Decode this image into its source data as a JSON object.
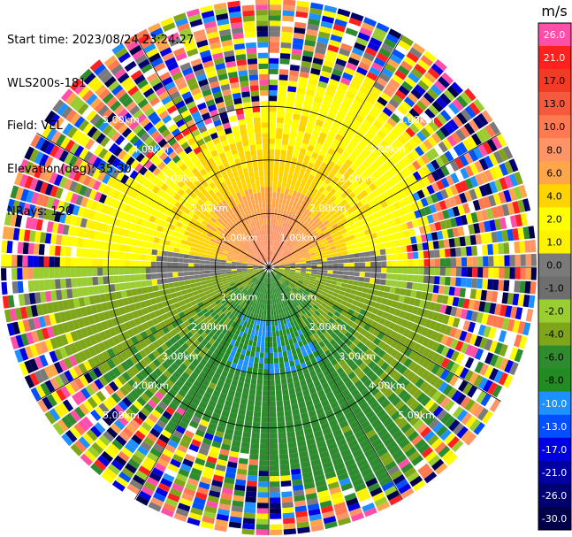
{
  "header": {
    "start_time": "Start time: 2023/08/24 23:24:27",
    "station": "WLS200s-181",
    "field": "Field: VEL",
    "elevation": "Elevation(deg): 35.30",
    "nrays": "NRays: 120"
  },
  "colorbar": {
    "unit": "m/s",
    "ticks": [
      "26.0",
      "21.0",
      "17.0",
      "13.0",
      "10.0",
      "8.0",
      "6.0",
      "4.0",
      "2.0",
      "1.0",
      "0.0",
      "-1.0",
      "-2.0",
      "-4.0",
      "-6.0",
      "-8.0",
      "-10.0",
      "-13.0",
      "-17.0",
      "-21.0",
      "-26.0",
      "-30.0"
    ],
    "colors": [
      "#ff4fa8",
      "#ff2020",
      "#f23b24",
      "#f65a3c",
      "#ff7a50",
      "#ff9566",
      "#ffa54a",
      "#ffd400",
      "#ffff00",
      "#fff200",
      "#7a7a7a",
      "#6e6e6e",
      "#9acd32",
      "#7fa61a",
      "#2e8b2e",
      "#228b22",
      "#1e90ff",
      "#0050ff",
      "#0000e0",
      "#0000a0",
      "#000070",
      "#00004a"
    ]
  },
  "chart_data": {
    "type": "heatmap",
    "title": "",
    "field": "VEL",
    "units": "m/s",
    "nrays": 120,
    "elevation_deg": 35.3,
    "range_ring_labels": [
      "1.00km",
      "2.00km",
      "3.00km",
      "4.00km",
      "5.00km"
    ],
    "max_range_km": 5.0,
    "pattern_description_values": {
      "north_sector_near_range_ms": [
        6.0,
        13.0
      ],
      "north_sector_mid_range_ms": [
        2.0,
        8.0
      ],
      "west_east_band_ms": [
        -1.0,
        1.0
      ],
      "south_sector_ms": [
        -8.0,
        -2.0
      ],
      "outer_noise_ms": [
        -30.0,
        26.0
      ]
    }
  }
}
